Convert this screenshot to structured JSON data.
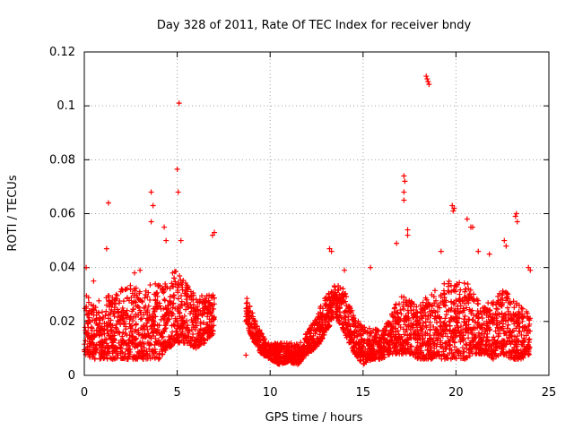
{
  "chart_data": {
    "type": "scatter",
    "title": "Day 328 of 2011, Rate Of TEC Index for receiver bndy",
    "xlabel": "GPS time / hours",
    "ylabel": "ROTI / TECUs",
    "xlim": [
      0,
      25
    ],
    "ylim": [
      0,
      0.12
    ],
    "x_ticks": [
      0,
      5,
      10,
      15,
      20,
      25
    ],
    "y_ticks": [
      0,
      0.02,
      0.04,
      0.06,
      0.08,
      0.1,
      0.12
    ],
    "y_tick_labels": [
      "0",
      "0.02",
      "0.04",
      "0.06",
      "0.08",
      "0.1",
      "0.12"
    ],
    "grid": true,
    "marker": "+",
    "marker_color": "#ff0000",
    "series": [
      {
        "name": "ROTI",
        "envelope": [
          [
            0.0,
            0.008,
            0.03
          ],
          [
            0.5,
            0.006,
            0.028
          ],
          [
            1.0,
            0.006,
            0.03
          ],
          [
            1.5,
            0.006,
            0.03
          ],
          [
            2.0,
            0.006,
            0.032
          ],
          [
            2.5,
            0.006,
            0.034
          ],
          [
            3.0,
            0.006,
            0.032
          ],
          [
            3.5,
            0.006,
            0.034
          ],
          [
            4.0,
            0.006,
            0.034
          ],
          [
            4.5,
            0.01,
            0.036
          ],
          [
            5.0,
            0.012,
            0.04
          ],
          [
            5.5,
            0.012,
            0.034
          ],
          [
            6.0,
            0.01,
            0.03
          ],
          [
            6.5,
            0.012,
            0.03
          ],
          [
            7.0,
            0.016,
            0.03
          ],
          [
            8.7,
            0.02,
            0.03
          ],
          [
            9.0,
            0.014,
            0.024
          ],
          [
            9.5,
            0.008,
            0.016
          ],
          [
            10.0,
            0.006,
            0.012
          ],
          [
            10.5,
            0.004,
            0.012
          ],
          [
            11.0,
            0.005,
            0.012
          ],
          [
            11.5,
            0.004,
            0.012
          ],
          [
            12.0,
            0.008,
            0.016
          ],
          [
            12.5,
            0.01,
            0.022
          ],
          [
            13.0,
            0.016,
            0.03
          ],
          [
            13.5,
            0.022,
            0.034
          ],
          [
            14.0,
            0.016,
            0.032
          ],
          [
            14.5,
            0.008,
            0.022
          ],
          [
            15.0,
            0.004,
            0.018
          ],
          [
            15.5,
            0.006,
            0.018
          ],
          [
            16.0,
            0.006,
            0.016
          ],
          [
            16.5,
            0.008,
            0.022
          ],
          [
            17.0,
            0.008,
            0.03
          ],
          [
            17.5,
            0.008,
            0.028
          ],
          [
            18.0,
            0.006,
            0.026
          ],
          [
            18.5,
            0.006,
            0.03
          ],
          [
            19.0,
            0.006,
            0.032
          ],
          [
            19.5,
            0.006,
            0.036
          ],
          [
            20.0,
            0.006,
            0.034
          ],
          [
            20.5,
            0.006,
            0.036
          ],
          [
            21.0,
            0.008,
            0.03
          ],
          [
            21.5,
            0.008,
            0.026
          ],
          [
            22.0,
            0.006,
            0.028
          ],
          [
            22.5,
            0.008,
            0.032
          ],
          [
            23.0,
            0.006,
            0.03
          ],
          [
            23.5,
            0.006,
            0.026
          ],
          [
            24.0,
            0.008,
            0.022
          ]
        ],
        "outliers": [
          [
            0.1,
            0.04
          ],
          [
            1.2,
            0.047
          ],
          [
            1.3,
            0.064
          ],
          [
            2.0,
            0.032
          ],
          [
            3.6,
            0.068
          ],
          [
            3.7,
            0.063
          ],
          [
            3.6,
            0.057
          ],
          [
            4.3,
            0.055
          ],
          [
            4.4,
            0.05
          ],
          [
            5.0,
            0.0765
          ],
          [
            5.1,
            0.101
          ],
          [
            5.05,
            0.068
          ],
          [
            5.2,
            0.05
          ],
          [
            6.9,
            0.052
          ],
          [
            7.0,
            0.053
          ],
          [
            8.7,
            0.0075
          ],
          [
            13.2,
            0.047
          ],
          [
            13.3,
            0.046
          ],
          [
            14.0,
            0.039
          ],
          [
            15.4,
            0.04
          ],
          [
            16.8,
            0.049
          ],
          [
            17.2,
            0.074
          ],
          [
            17.25,
            0.072
          ],
          [
            17.2,
            0.068
          ],
          [
            17.2,
            0.065
          ],
          [
            17.4,
            0.054
          ],
          [
            17.4,
            0.052
          ],
          [
            18.4,
            0.111
          ],
          [
            18.45,
            0.11
          ],
          [
            18.5,
            0.109
          ],
          [
            18.55,
            0.108
          ],
          [
            19.2,
            0.046
          ],
          [
            19.8,
            0.063
          ],
          [
            19.85,
            0.061
          ],
          [
            19.9,
            0.062
          ],
          [
            20.6,
            0.058
          ],
          [
            20.8,
            0.055
          ],
          [
            20.9,
            0.055
          ],
          [
            21.2,
            0.046
          ],
          [
            22.6,
            0.05
          ],
          [
            22.7,
            0.048
          ],
          [
            23.2,
            0.059
          ],
          [
            23.25,
            0.06
          ],
          [
            23.3,
            0.057
          ],
          [
            23.9,
            0.04
          ],
          [
            24.0,
            0.039
          ],
          [
            21.8,
            0.045
          ],
          [
            3.0,
            0.039
          ],
          [
            0.5,
            0.035
          ],
          [
            2.7,
            0.038
          ]
        ]
      }
    ]
  }
}
